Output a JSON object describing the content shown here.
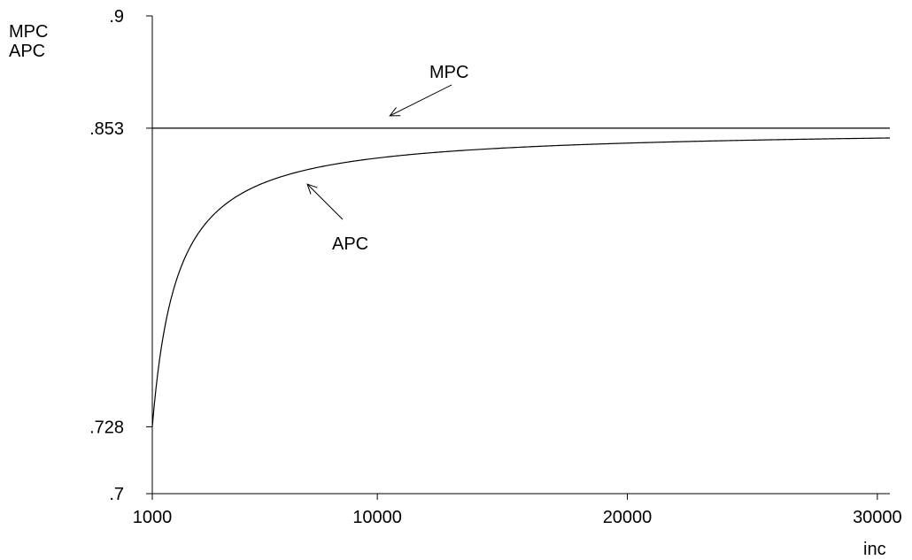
{
  "chart_data": {
    "type": "line",
    "ylabel_lines": [
      "MPC",
      "APC"
    ],
    "xlabel": "inc",
    "xlim": [
      1000,
      30500
    ],
    "ylim": [
      0.7,
      0.9
    ],
    "xticks": [
      {
        "value": 1000,
        "label": "1000"
      },
      {
        "value": 10000,
        "label": "10000"
      },
      {
        "value": 20000,
        "label": "20000"
      },
      {
        "value": 30000,
        "label": "30000"
      }
    ],
    "yticks": [
      {
        "value": 0.7,
        "label": ".7"
      },
      {
        "value": 0.728,
        "label": ".728"
      },
      {
        "value": 0.853,
        "label": ".853"
      },
      {
        "value": 0.9,
        "label": ".9"
      }
    ],
    "series": [
      {
        "name": "MPC",
        "x": [
          1000,
          30500
        ],
        "values": [
          0.853,
          0.853
        ]
      },
      {
        "name": "APC",
        "x": [
          1000,
          1500,
          2000,
          3000,
          4000,
          5000,
          6000,
          8000,
          10000,
          12000,
          15000,
          20000,
          25000,
          30000,
          30500
        ],
        "values": [
          0.728,
          0.7697,
          0.7905,
          0.8113,
          0.8218,
          0.828,
          0.8322,
          0.8374,
          0.8405,
          0.8426,
          0.8447,
          0.8468,
          0.848,
          0.8488,
          0.8489
        ]
      }
    ],
    "annotations": [
      {
        "text": "MPC",
        "points_to": {
          "x": 10500,
          "y": 0.853
        }
      },
      {
        "text": "APC",
        "points_to": {
          "x": 7200,
          "y": 0.8355
        }
      }
    ]
  }
}
